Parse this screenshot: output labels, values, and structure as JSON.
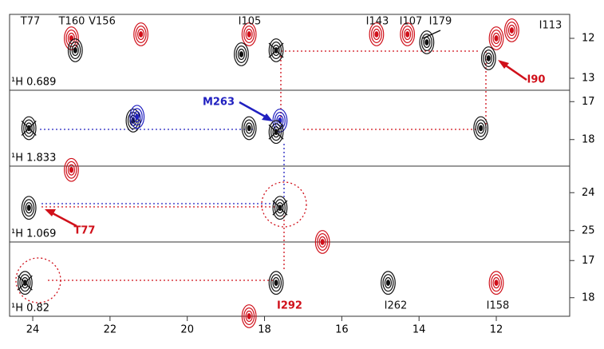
{
  "chart_data": {
    "type": "nmr-strips",
    "xlim": [
      24.6,
      10.1
    ],
    "xticks": [
      24,
      22,
      20,
      18,
      16,
      14,
      12
    ],
    "panels": [
      {
        "label": "¹H 0.689",
        "ylim": [
          11.4,
          13.3
        ],
        "yticks": [
          12,
          13
        ],
        "annotations": [
          "T77",
          "T160",
          "V156",
          "I105",
          "I143",
          "I107",
          "I179",
          "I113",
          "I90"
        ],
        "peaks": {
          "x": [
            23.0,
            22.9,
            21.2,
            18.4,
            18.6,
            17.7,
            15.1,
            14.3,
            13.8,
            12.0,
            12.2,
            11.6
          ],
          "y": [
            12.0,
            12.3,
            11.9,
            11.9,
            12.4,
            12.3,
            11.9,
            11.9,
            12.1,
            12.0,
            12.5,
            11.8
          ],
          "colors": [
            "#d0101a",
            "#111111",
            "#d0101a",
            "#d0101a",
            "#111111",
            "#111111",
            "#d0101a",
            "#d0101a",
            "#111111",
            "#d0101a",
            "#111111",
            "#d0101a"
          ],
          "crossed": [
            false,
            false,
            false,
            false,
            false,
            true,
            false,
            false,
            false,
            false,
            false,
            false
          ]
        }
      },
      {
        "label": "¹H 1.833",
        "ylim": [
          16.7,
          18.7
        ],
        "yticks": [
          17,
          18
        ],
        "annotations": [
          "M263"
        ],
        "peaks": {
          "x": [
            24.1,
            21.4,
            21.3,
            18.4,
            17.6,
            17.7,
            12.4
          ],
          "y": [
            17.7,
            17.5,
            17.4,
            17.7,
            17.5,
            17.8,
            17.7
          ],
          "colors": [
            "#111111",
            "#111111",
            "#2020c0",
            "#111111",
            "#2020c0",
            "#111111",
            "#111111"
          ],
          "crossed": [
            true,
            false,
            false,
            false,
            false,
            true,
            false
          ]
        }
      },
      {
        "label": "¹H 1.069",
        "ylim": [
          23.3,
          25.3
        ],
        "yticks": [
          24,
          25
        ],
        "annotations": [
          "T77"
        ],
        "peaks": {
          "x": [
            24.1,
            23.0,
            17.6,
            16.5
          ],
          "y": [
            24.4,
            23.4,
            24.4,
            25.3
          ],
          "colors": [
            "#111111",
            "#d0101a",
            "#111111",
            "#d0101a"
          ],
          "crossed": [
            false,
            false,
            true,
            false
          ]
        }
      },
      {
        "label": "¹H 0.82",
        "ylim": [
          16.5,
          18.5
        ],
        "yticks": [
          17,
          18
        ],
        "annotations": [
          "I292",
          "I262",
          "I158"
        ],
        "peaks": {
          "x": [
            24.2,
            17.7,
            14.8,
            12.0,
            18.4
          ],
          "y": [
            17.6,
            17.6,
            17.6,
            17.6,
            18.5
          ],
          "colors": [
            "#111111",
            "#111111",
            "#111111",
            "#d0101a",
            "#d0101a"
          ],
          "crossed": [
            true,
            false,
            false,
            false,
            false
          ]
        }
      }
    ]
  }
}
